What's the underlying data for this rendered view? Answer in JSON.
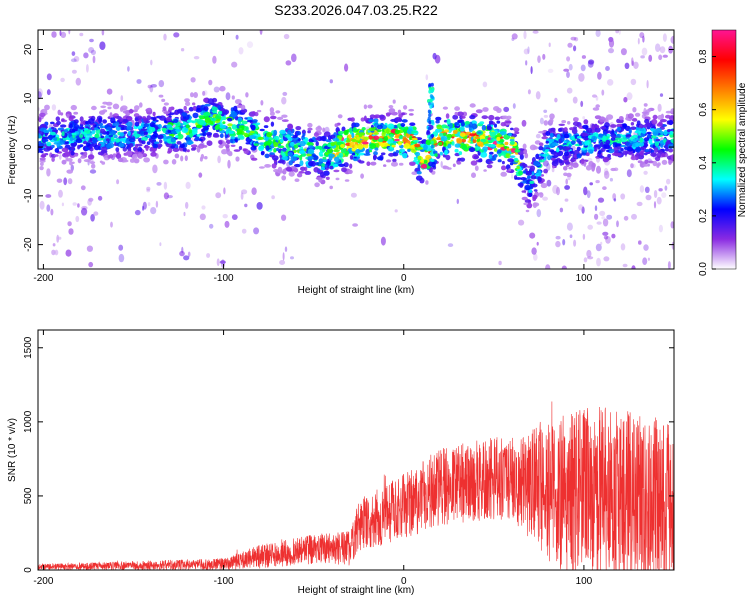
{
  "figure": {
    "title": "S233.2026.047.03.25.R22"
  },
  "chart_data": [
    {
      "type": "heatmap",
      "xlabel": "Height of straight line (km)",
      "ylabel": "Frequency (Hz)",
      "xlim": [
        -203,
        150
      ],
      "ylim": [
        -25,
        24
      ],
      "xticks": [
        -200,
        -100,
        0,
        100
      ],
      "yticks": [
        -20,
        -10,
        0,
        10,
        20
      ],
      "ridge": [
        {
          "x": -200,
          "y": 2
        },
        {
          "x": -160,
          "y": 2.5
        },
        {
          "x": -120,
          "y": 3.5
        },
        {
          "x": -105,
          "y": 6
        },
        {
          "x": -80,
          "y": 2
        },
        {
          "x": -45,
          "y": -2
        },
        {
          "x": -30,
          "y": 1
        },
        {
          "x": -10,
          "y": 2
        },
        {
          "x": 5,
          "y": 1.5
        },
        {
          "x": 10,
          "y": -3
        },
        {
          "x": 20,
          "y": 2
        },
        {
          "x": 40,
          "y": 2
        },
        {
          "x": 60,
          "y": 0
        },
        {
          "x": 70,
          "y": -8
        },
        {
          "x": 80,
          "y": 0
        },
        {
          "x": 100,
          "y": 1
        },
        {
          "x": 150,
          "y": 2
        }
      ],
      "colorbar": {
        "label": "Normalized spectral amplitude",
        "range": [
          0.0,
          0.9
        ],
        "ticks": [
          0.0,
          0.2,
          0.4,
          0.6,
          0.8
        ],
        "tick_labels": [
          "0.0",
          "0.2",
          "0.4",
          "0.6",
          "0.8"
        ],
        "colors": [
          "#ffffff",
          "#8a2be2",
          "#0000ff",
          "#00ffff",
          "#00ff00",
          "#ffff00",
          "#ff7f00",
          "#ff0000",
          "#ff1493"
        ]
      }
    },
    {
      "type": "line",
      "xlabel": "Height of straight line (km)",
      "ylabel": "SNR (10 * v/v)",
      "xlim": [
        -203,
        150
      ],
      "ylim": [
        0,
        1620
      ],
      "xticks": [
        -200,
        -100,
        0,
        100
      ],
      "yticks": [
        0,
        500,
        1000,
        1500
      ],
      "color": "#ee3030",
      "envelope": [
        {
          "x": -203,
          "mean": 20,
          "amp": 20
        },
        {
          "x": -150,
          "mean": 30,
          "amp": 30
        },
        {
          "x": -100,
          "mean": 40,
          "amp": 40
        },
        {
          "x": -80,
          "mean": 90,
          "amp": 80
        },
        {
          "x": -50,
          "mean": 140,
          "amp": 100
        },
        {
          "x": -30,
          "mean": 150,
          "amp": 120
        },
        {
          "x": -25,
          "mean": 300,
          "amp": 180
        },
        {
          "x": 0,
          "mean": 430,
          "amp": 220
        },
        {
          "x": 20,
          "mean": 560,
          "amp": 260
        },
        {
          "x": 50,
          "mean": 620,
          "amp": 280
        },
        {
          "x": 65,
          "mean": 590,
          "amp": 300
        },
        {
          "x": 80,
          "mean": 520,
          "amp": 500
        },
        {
          "x": 110,
          "mean": 500,
          "amp": 620
        },
        {
          "x": 150,
          "mean": 420,
          "amp": 580
        }
      ]
    }
  ]
}
